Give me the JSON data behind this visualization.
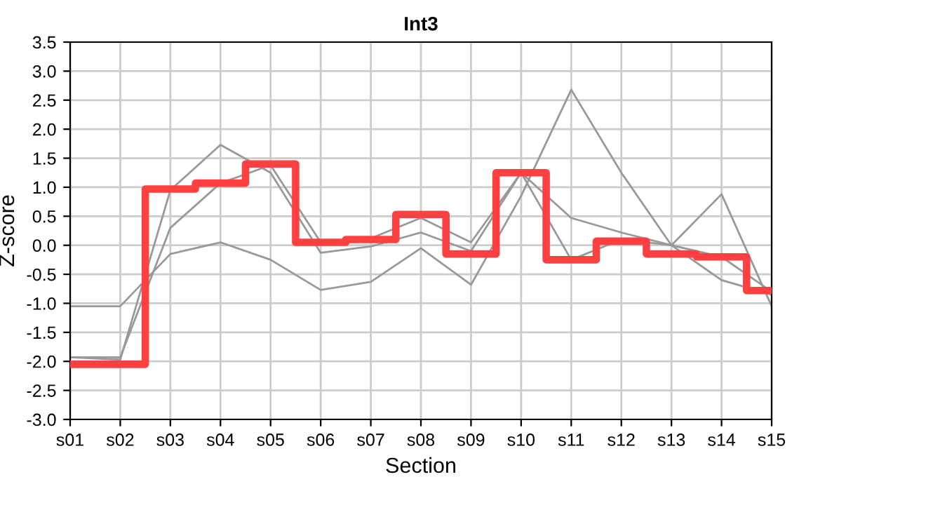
{
  "chart_data": {
    "type": "step",
    "title": "Int3",
    "xlabel": "Section",
    "ylabel": "Z-score",
    "categories": [
      "s01",
      "s02",
      "s03",
      "s04",
      "s05",
      "s06",
      "s07",
      "s08",
      "s09",
      "s10",
      "s11",
      "s12",
      "s13",
      "s14",
      "s15"
    ],
    "series": [
      {
        "type": "line",
        "color": "#999999",
        "values": [
          -1.05,
          -1.05,
          -0.15,
          0.05,
          -0.25,
          -0.77,
          -0.63,
          -0.05,
          -0.68,
          0.85,
          2.68,
          1.25,
          0.0,
          0.88,
          -1.05
        ]
      },
      {
        "type": "line",
        "color": "#999999",
        "values": [
          -1.93,
          -1.97,
          0.95,
          1.73,
          1.25,
          -0.13,
          -0.02,
          0.22,
          -0.1,
          1.25,
          -0.25,
          0.1,
          0.0,
          -0.2,
          -0.8
        ]
      },
      {
        "type": "line",
        "color": "#999999",
        "values": [
          -1.93,
          -1.93,
          0.3,
          1.07,
          1.38,
          0.05,
          0.12,
          0.47,
          0.05,
          1.25,
          0.47,
          0.22,
          0.0,
          -0.6,
          -0.85
        ]
      },
      {
        "color": "#ff4040",
        "values": [
          -2.05,
          -2.05,
          0.97,
          1.07,
          1.4,
          0.05,
          0.1,
          0.53,
          -0.15,
          1.25,
          -0.25,
          0.07,
          -0.15,
          -0.2,
          -0.78
        ]
      }
    ],
    "ylim": [
      -3.0,
      3.5
    ],
    "yticks": [
      {
        "value": -3,
        "label": "-3.0"
      },
      {
        "value": -2.5,
        "label": "-2.5"
      },
      {
        "value": -2,
        "label": "-2.0"
      },
      {
        "value": -1.5,
        "label": "-1.5"
      },
      {
        "value": -1,
        "label": "-1.0"
      },
      {
        "value": -0.5,
        "label": "-0.5"
      },
      {
        "value": 0,
        "label": "0.0"
      },
      {
        "value": 0.5,
        "label": "0.5"
      },
      {
        "value": 1,
        "label": "1.0"
      },
      {
        "value": 1.5,
        "label": "1.5"
      },
      {
        "value": 2,
        "label": "2.0"
      },
      {
        "value": 2.5,
        "label": "2.5"
      },
      {
        "value": 3,
        "label": "3.0"
      },
      {
        "value": 3.5,
        "label": "3.5"
      }
    ],
    "grid": true
  }
}
